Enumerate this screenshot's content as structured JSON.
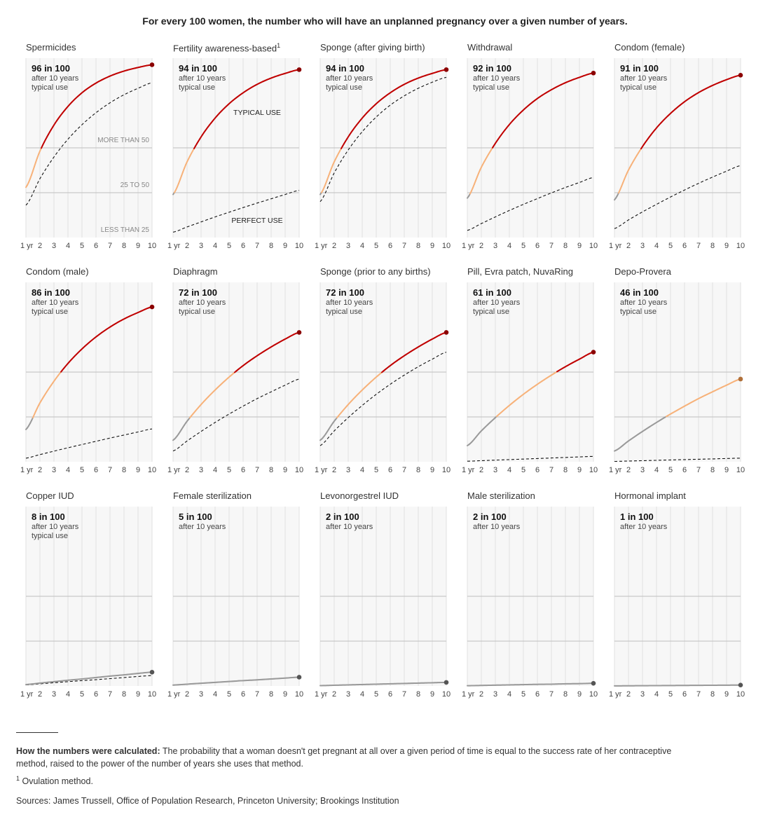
{
  "header": {
    "title": "For every 100 women, the number who will have an unplanned pregnancy over a given number of years."
  },
  "chart_data": {
    "type": "line",
    "layout": "small-multiples 3x5",
    "x": [
      1,
      2,
      3,
      4,
      5,
      6,
      7,
      8,
      9,
      10
    ],
    "x_tick_labels": [
      "1 yr",
      "2",
      "3",
      "4",
      "5",
      "6",
      "7",
      "8",
      "9",
      "10"
    ],
    "ylim": [
      0,
      100
    ],
    "y_gridlines": [
      25,
      50
    ],
    "band_labels": [
      "MORE THAN 50",
      "25 TO 50",
      "LESS THAN 25"
    ],
    "series_labels": {
      "typical": "TYPICAL USE",
      "perfect": "PERFECT USE"
    },
    "colors": {
      "less_than_25": "#9a9a9a",
      "25_to_50": "#f7b27a",
      "more_than_50": "#c00000",
      "perfect": "#111111"
    },
    "panels": [
      {
        "title": "Spermicides",
        "stat": "96 in 100",
        "sub": [
          "after 10 years",
          "typical use"
        ],
        "typical": [
          28,
          48.2,
          62.7,
          73.1,
          80.7,
          86.1,
          90.0,
          92.8,
          94.8,
          96.3
        ],
        "perfect": [
          18,
          32.8,
          44.9,
          54.8,
          62.9,
          69.6,
          75.1,
          79.6,
          83.2,
          86.3
        ]
      },
      {
        "title": "Fertility awareness-based",
        "footnote": "1",
        "stat": "94 in 100",
        "sub": [
          "after 10 years",
          "typical use"
        ],
        "typical": [
          24,
          42.2,
          56.1,
          66.6,
          74.6,
          80.7,
          85.4,
          88.9,
          91.5,
          93.6
        ],
        "perfect": [
          3,
          5.9,
          8.7,
          11.5,
          14.1,
          16.7,
          19.2,
          21.6,
          24.0,
          26.3
        ]
      },
      {
        "title": "Sponge (after giving birth)",
        "stat": "94 in 100",
        "sub": [
          "after 10 years",
          "typical use"
        ],
        "typical": [
          24,
          42.2,
          56.1,
          66.6,
          74.6,
          80.7,
          85.4,
          88.9,
          91.5,
          93.6
        ],
        "perfect": [
          20,
          36,
          48.8,
          59.0,
          67.2,
          73.8,
          79.0,
          83.2,
          86.6,
          89.3
        ]
      },
      {
        "title": "Withdrawal",
        "stat": "92 in 100",
        "sub": [
          "after 10 years",
          "typical use"
        ],
        "typical": [
          22,
          39.2,
          52.5,
          63.0,
          71.1,
          77.5,
          82.4,
          86.3,
          89.3,
          91.7
        ],
        "perfect": [
          4,
          7.8,
          11.5,
          15.1,
          18.5,
          21.7,
          24.9,
          27.9,
          30.7,
          33.5
        ]
      },
      {
        "title": "Condom (female)",
        "stat": "91 in 100",
        "sub": [
          "after 10 years",
          "typical use"
        ],
        "typical": [
          21,
          37.6,
          50.7,
          61.1,
          69.2,
          75.7,
          80.8,
          84.8,
          88.0,
          90.5
        ],
        "perfect": [
          5,
          9.8,
          14.3,
          18.5,
          22.6,
          26.5,
          30.2,
          33.7,
          37.0,
          40.1
        ]
      },
      {
        "title": "Condom (male)",
        "stat": "86 in 100",
        "sub": [
          "after 10 years",
          "typical use"
        ],
        "typical": [
          18,
          32.8,
          44.9,
          54.8,
          62.9,
          69.6,
          75.1,
          79.6,
          83.2,
          86.3
        ],
        "perfect": [
          2,
          4.0,
          5.9,
          7.8,
          9.6,
          11.4,
          13.2,
          14.9,
          16.6,
          18.3
        ]
      },
      {
        "title": "Diaphragm",
        "stat": "72 in 100",
        "sub": [
          "after 10 years",
          "typical use"
        ],
        "typical": [
          12,
          22.6,
          31.9,
          40.0,
          47.2,
          53.6,
          59.1,
          64.0,
          68.4,
          72.1
        ],
        "perfect": [
          6,
          11.6,
          16.9,
          21.9,
          26.6,
          31.0,
          35.2,
          39.0,
          42.7,
          46.1
        ]
      },
      {
        "title": "Sponge (prior to any births)",
        "stat": "72 in 100",
        "sub": [
          "after 10 years",
          "typical use"
        ],
        "typical": [
          12,
          22.6,
          31.9,
          40.0,
          47.2,
          53.6,
          59.1,
          64.0,
          68.4,
          72.1
        ],
        "perfect": [
          9,
          17.2,
          24.6,
          31.4,
          37.6,
          43.2,
          48.3,
          53.0,
          57.2,
          61.1
        ]
      },
      {
        "title": "Pill, Evra patch, NuvaRing",
        "stat": "61 in 100",
        "sub": [
          "after 10 years",
          "typical use"
        ],
        "typical": [
          9,
          17.2,
          24.6,
          31.4,
          37.6,
          43.2,
          48.3,
          53.0,
          57.2,
          61.1
        ],
        "perfect": [
          0.3,
          0.6,
          0.9,
          1.2,
          1.5,
          1.8,
          2.1,
          2.4,
          2.7,
          3.0
        ]
      },
      {
        "title": "Depo-Provera",
        "stat": "46 in 100",
        "sub": [
          "after 10 years",
          "typical use"
        ],
        "typical": [
          6,
          11.6,
          16.9,
          21.9,
          26.6,
          31.0,
          35.2,
          39.0,
          42.7,
          46.1
        ],
        "perfect": [
          0.2,
          0.4,
          0.6,
          0.8,
          1.0,
          1.2,
          1.4,
          1.6,
          1.8,
          2.0
        ]
      },
      {
        "title": "Copper IUD",
        "stat": "8 in 100",
        "sub": [
          "after 10 years",
          "typical use"
        ],
        "typical": [
          0.8,
          1.6,
          2.4,
          3.2,
          3.9,
          4.7,
          5.5,
          6.2,
          7.0,
          7.7
        ],
        "perfect": [
          0.6,
          1.2,
          1.8,
          2.4,
          3.0,
          3.5,
          4.1,
          4.7,
          5.3,
          5.8
        ]
      },
      {
        "title": "Female sterilization",
        "stat": "5 in 100",
        "sub": [
          "after 10 years"
        ],
        "typical": [
          0.5,
          1.0,
          1.5,
          2.0,
          2.5,
          3.0,
          3.4,
          3.9,
          4.4,
          4.9
        ]
      },
      {
        "title": "Levonorgestrel IUD",
        "stat": "2 in 100",
        "sub": [
          "after 10 years"
        ],
        "typical": [
          0.2,
          0.4,
          0.6,
          0.8,
          1.0,
          1.2,
          1.4,
          1.6,
          1.8,
          2.0
        ]
      },
      {
        "title": "Male sterilization",
        "stat": "2 in 100",
        "sub": [
          "after 10 years"
        ],
        "typical": [
          0.15,
          0.3,
          0.45,
          0.6,
          0.75,
          0.9,
          1.0,
          1.2,
          1.3,
          1.5
        ]
      },
      {
        "title": "Hormonal implant",
        "stat": "1 in 100",
        "sub": [
          "after 10 years"
        ],
        "typical": [
          0.05,
          0.1,
          0.15,
          0.2,
          0.25,
          0.3,
          0.35,
          0.4,
          0.45,
          0.5
        ]
      }
    ]
  },
  "footer": {
    "method_label": "How the numbers were calculated:",
    "method_text": " The probability that a woman doesn't get pregnant at all over a given period of time is equal to the success rate of her contraceptive method, raised to the power of the number of years she uses that method.",
    "footnote_mark": "1",
    "footnote_text": " Ovulation method.",
    "sources": "Sources: James Trussell, Office of Population Research, Princeton University; Brookings Institution"
  }
}
